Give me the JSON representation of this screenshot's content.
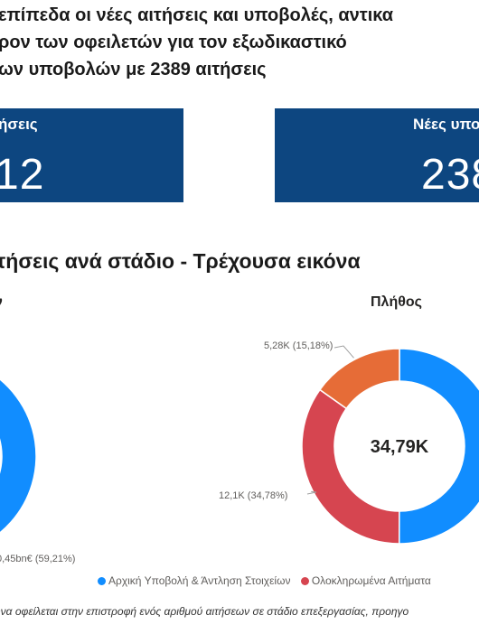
{
  "headline": {
    "line1": "επίπεδα οι νέες αιτήσεις και υποβολές, αντικα",
    "line2": "ρον των οφειλετών για τον εξωδικαστικό",
    "line3": "ων υποβολών με 2389 αιτήσεις"
  },
  "kpis": [
    {
      "label": "ήσεις",
      "value": "12"
    },
    {
      "label": "Νέες υπο",
      "value": "238"
    }
  ],
  "section_title": "τήσεις ανά στάδιο - Τρέχουσα εικόνα",
  "chart_data": [
    {
      "type": "donut",
      "title": "ν",
      "slice_labels": [
        {
          "text": "0,45bn€ (59,21%)",
          "value": 0.45,
          "percent": 59.21
        }
      ],
      "colors": [
        "#118dff"
      ]
    },
    {
      "type": "donut",
      "title": "Πλήθος",
      "center_label": "34,79K",
      "slices": [
        {
          "name": "Αρχική Υποβολή & Άντληση Στοιχείων",
          "label": "",
          "percent": 50.04,
          "color": "#118dff"
        },
        {
          "name": "Ολοκληρωμένα Αιτήματα",
          "label": "12,1K (34,78%)",
          "value": 12.1,
          "percent": 34.78,
          "color": "#d64550"
        },
        {
          "name": "",
          "label": "5,28K (15,18%)",
          "value": 5.28,
          "percent": 15.18,
          "color": "#e66c37"
        }
      ]
    }
  ],
  "legend": [
    {
      "label": "Αρχική Υποβολή & Άντληση Στοιχείων",
      "color": "#118dff"
    },
    {
      "label": "Ολοκληρωμένα Αιτήματα",
      "color": "#d64550"
    }
  ],
  "footnote": "ήνα οφείλεται στην επιστροφή ενός αριθμού αιτήσεων σε στάδιο επεξεργασίας, προηγο"
}
